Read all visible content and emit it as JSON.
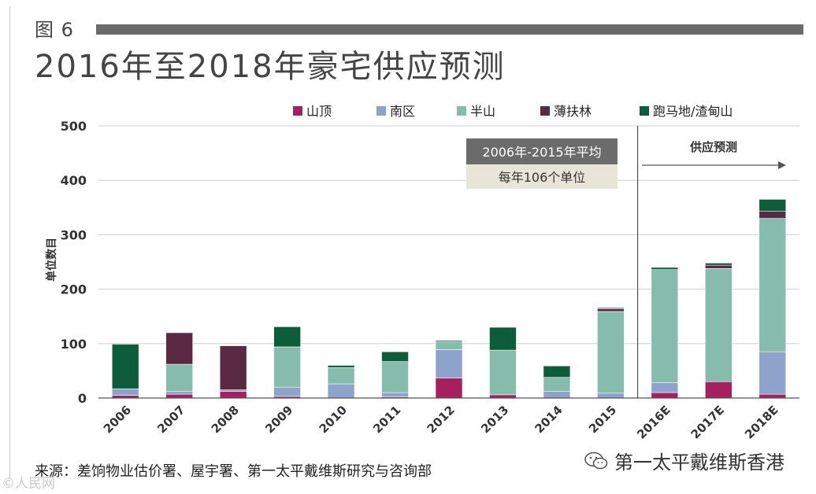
{
  "figure": {
    "label": "图 6",
    "title": "2016年至2018年豪宅供应预测"
  },
  "source_text": "来源：差饷物业估价署、屋宇署、第一太平戴维斯研究与咨询部",
  "wechat": {
    "icon": "wechat-icon",
    "name": "第一太平戴维斯香港"
  },
  "watermark_left": "©人民网",
  "chart_data": {
    "type": "bar",
    "stacked": true,
    "title": "2016年至2018年豪宅供应预测",
    "ylabel": "单位数目",
    "xlabel": "",
    "ylim": [
      0,
      500
    ],
    "yticks": [
      0,
      100,
      200,
      300,
      400,
      500
    ],
    "grid": true,
    "legend_position": "top",
    "categories": [
      "2006",
      "2007",
      "2008",
      "2009",
      "2010",
      "2011",
      "2012",
      "2013",
      "2014",
      "2015",
      "2016E",
      "2017E",
      "2018E"
    ],
    "series": [
      {
        "name": "山顶",
        "color": "#a6205f",
        "values": [
          5,
          7,
          12,
          3,
          0,
          2,
          37,
          6,
          0,
          0,
          10,
          30,
          7
        ]
      },
      {
        "name": "南区",
        "color": "#8ea3cc",
        "values": [
          12,
          5,
          3,
          17,
          26,
          8,
          52,
          0,
          12,
          9,
          18,
          0,
          78
        ]
      },
      {
        "name": "半山",
        "color": "#86bcac",
        "values": [
          0,
          50,
          0,
          74,
          30,
          57,
          15,
          82,
          26,
          150,
          208,
          208,
          245
        ]
      },
      {
        "name": "薄扶林",
        "color": "#5a2a42",
        "values": [
          0,
          58,
          81,
          0,
          0,
          0,
          0,
          0,
          0,
          5,
          0,
          6,
          13
        ]
      },
      {
        "name": "跑马地/渣甸山",
        "color": "#0d5c3c",
        "values": [
          82,
          0,
          0,
          37,
          4,
          18,
          2,
          42,
          21,
          2,
          4,
          4,
          22
        ]
      }
    ],
    "annotations": {
      "average_box": {
        "title": "2006年-2015年平均",
        "subtitle": "每年106个单位"
      },
      "forecast_label": "供应预测",
      "forecast_start_category": "2016E"
    }
  }
}
